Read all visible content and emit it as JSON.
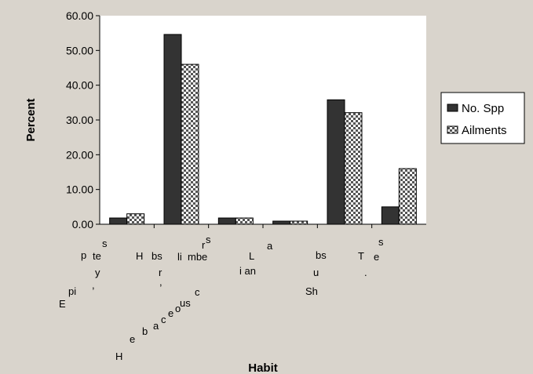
{
  "chart_data": {
    "type": "bar",
    "title": "",
    "xlabel": "Habit",
    "ylabel": "Percent",
    "ylim": [
      0,
      60
    ],
    "yticks": [
      "0.00",
      "10.00",
      "20.00",
      "30.00",
      "40.00",
      "50.00",
      "60.00"
    ],
    "categories": [
      "Epiphytes",
      "Herbaceous",
      "Climbers",
      "Lianas",
      "Shrubs",
      "Trees"
    ],
    "series": [
      {
        "name": "No. Spp",
        "values": [
          1.8,
          54.6,
          1.8,
          0.9,
          35.8,
          5.0
        ]
      },
      {
        "name": "Ailments",
        "values": [
          3.0,
          46.0,
          1.8,
          0.9,
          32.1,
          16.0
        ]
      }
    ],
    "grid": false,
    "legend": "right",
    "colors": {
      "no_spp": "#333333",
      "ailments_pattern": "checkerboard",
      "plot_bg": "#ffffff",
      "figure_bg": "#d9d4cc"
    }
  },
  "x_label_fragments": [
    {
      "group": 0,
      "chars": [
        "s",
        "p",
        "te",
        "y",
        "E",
        "pi",
        ","
      ]
    },
    {
      "group": 1,
      "chars": [
        "H",
        "bs",
        "r",
        ",",
        "c",
        "us",
        "o",
        "e",
        "c",
        "a",
        "b",
        "e",
        "H"
      ]
    },
    {
      "group": 2,
      "chars": [
        "s",
        "li",
        "mbe",
        "r"
      ]
    },
    {
      "group": 3,
      "chars": [
        "a",
        "L",
        "i an"
      ]
    },
    {
      "group": 4,
      "chars": [
        "bs",
        "u",
        "Sh"
      ]
    },
    {
      "group": 5,
      "chars": [
        "s",
        "T",
        "e",
        "."
      ]
    }
  ]
}
